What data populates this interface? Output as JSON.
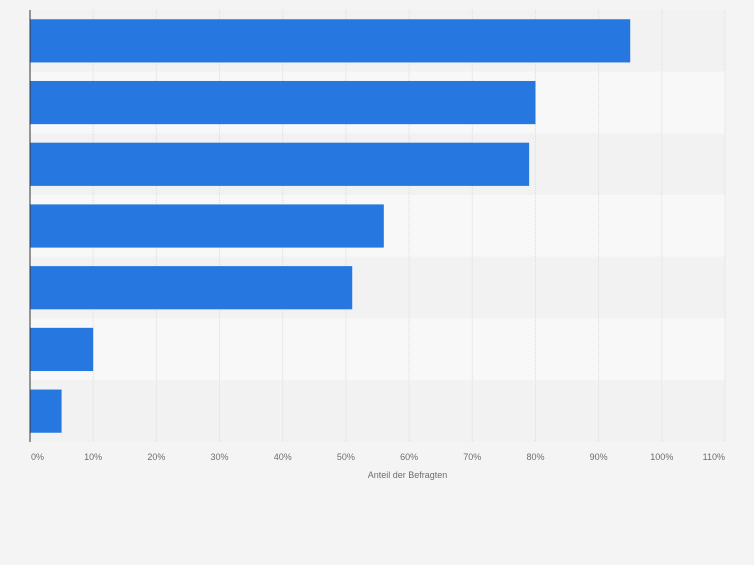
{
  "chart_data": {
    "type": "bar",
    "orientation": "horizontal",
    "categories": [
      "",
      "",
      "",
      "",
      "",
      "",
      ""
    ],
    "values": [
      95,
      80,
      79,
      56,
      51,
      10,
      5
    ],
    "xlabel": "Anteil der Befragten",
    "ylabel": "",
    "xlim": [
      0,
      110
    ],
    "x_ticks": [
      0,
      10,
      20,
      30,
      40,
      50,
      60,
      70,
      80,
      90,
      100,
      110
    ],
    "x_tick_labels": [
      "0%",
      "10%",
      "20%",
      "30%",
      "40%",
      "50%",
      "60%",
      "70%",
      "80%",
      "90%",
      "100%",
      "110%"
    ],
    "grid": true,
    "colors": {
      "bar": "#2777e0",
      "band_dark": "#f2f2f2",
      "band_light": "#f8f8f8",
      "page_bg": "#f4f4f4",
      "grid": "#dcdcdc",
      "axis": "#333333",
      "tick_text": "#6e6e6e"
    }
  }
}
